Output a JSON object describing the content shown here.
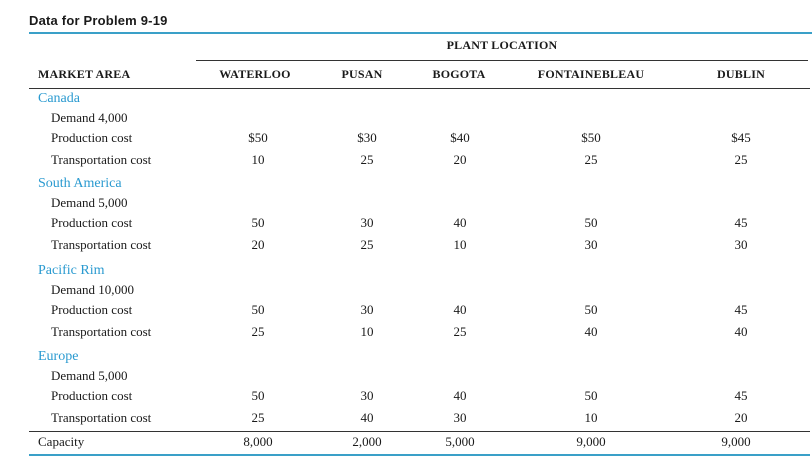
{
  "title": "Data for Problem 9-19",
  "group_header": "PLANT LOCATION",
  "columns": {
    "market": "MARKET AREA",
    "plants": [
      "WATERLOO",
      "PUSAN",
      "BOGOTA",
      "FONTAINEBLEAU",
      "DUBLIN"
    ]
  },
  "regions": [
    {
      "name": "Canada",
      "demand": "Demand 4,000",
      "production_label": "Production cost",
      "production": [
        "$50",
        "$30",
        "$40",
        "$50",
        "$45"
      ],
      "transport_label": "Transportation cost",
      "transport": [
        "10",
        "25",
        "20",
        "25",
        "25"
      ]
    },
    {
      "name": "South America",
      "demand": "Demand 5,000",
      "production_label": "Production cost",
      "production": [
        "50",
        "30",
        "40",
        "50",
        "45"
      ],
      "transport_label": "Transportation cost",
      "transport": [
        "20",
        "25",
        "10",
        "30",
        "30"
      ]
    },
    {
      "name": "Pacific Rim",
      "demand": "Demand 10,000",
      "production_label": "Production cost",
      "production": [
        "50",
        "30",
        "40",
        "50",
        "45"
      ],
      "transport_label": "Transportation cost",
      "transport": [
        "25",
        "10",
        "25",
        "40",
        "40"
      ]
    },
    {
      "name": "Europe",
      "demand": "Demand 5,000",
      "production_label": "Production cost",
      "production": [
        "50",
        "30",
        "40",
        "50",
        "45"
      ],
      "transport_label": "Transportation cost",
      "transport": [
        "25",
        "40",
        "30",
        "10",
        "20"
      ]
    }
  ],
  "capacity": {
    "label": "Capacity",
    "values": [
      "8,000",
      "2,000",
      "5,000",
      "9,000",
      "9,000"
    ]
  },
  "colors": {
    "accent": "#2a9ad0",
    "rule": "#3aa0c8"
  }
}
